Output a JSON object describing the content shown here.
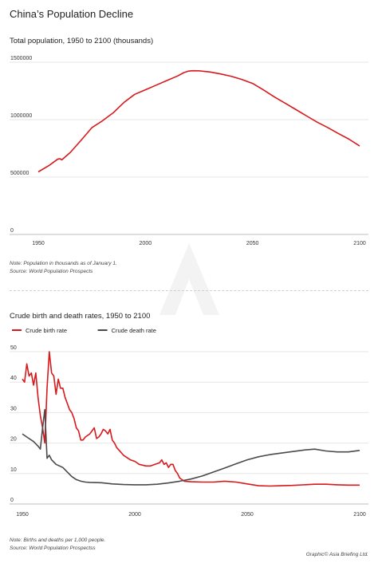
{
  "header": {
    "title": "China’s Population Decline"
  },
  "chart_data": [
    {
      "type": "line",
      "title": "Total population, 1950 to 2100 (thousands)",
      "xlabel": "",
      "ylabel": "",
      "xlim": [
        1950,
        2100
      ],
      "ylim": [
        0,
        1500000
      ],
      "x_ticks": [
        1950,
        2000,
        2050,
        2100
      ],
      "y_ticks": [
        0,
        500000,
        1000000,
        1500000
      ],
      "x_tick_labels": [
        "1950",
        "2000",
        "2050",
        "2100"
      ],
      "y_tick_labels": [
        "0",
        "500000",
        "1000000",
        "1500000"
      ],
      "grid": "horizontal",
      "series": [
        {
          "name": "",
          "color": "#d7191c",
          "x": [
            1950,
            1955,
            1959,
            1960,
            1961,
            1965,
            1970,
            1975,
            1980,
            1985,
            1990,
            1995,
            2000,
            2005,
            2010,
            2015,
            2018,
            2020,
            2022,
            2025,
            2030,
            2035,
            2040,
            2045,
            2050,
            2055,
            2060,
            2065,
            2070,
            2075,
            2080,
            2085,
            2090,
            2095,
            2100
          ],
          "y": [
            545000,
            600000,
            655000,
            660000,
            650000,
            715000,
            820000,
            930000,
            990000,
            1060000,
            1150000,
            1220000,
            1260000,
            1300000,
            1340000,
            1380000,
            1410000,
            1422000,
            1426000,
            1425000,
            1415000,
            1398000,
            1378000,
            1350000,
            1315000,
            1260000,
            1200000,
            1145000,
            1090000,
            1035000,
            980000,
            932000,
            880000,
            830000,
            770000
          ]
        }
      ],
      "note": "Note: Population in thousands as of January 1.",
      "source": "Source: World Population Prospects"
    },
    {
      "type": "line",
      "title": "Crude birth and death rates, 1950 to 2100",
      "xlabel": "",
      "ylabel": "",
      "xlim": [
        1950,
        2100
      ],
      "ylim": [
        0,
        50
      ],
      "x_ticks": [
        1950,
        2000,
        2050,
        2100
      ],
      "y_ticks": [
        0,
        10,
        20,
        30,
        40,
        50
      ],
      "x_tick_labels": [
        "1950",
        "2000",
        "2050",
        "2100"
      ],
      "y_tick_labels": [
        "0",
        "10",
        "20",
        "30",
        "40",
        "50"
      ],
      "grid": "horizontal",
      "legend": "top-left",
      "series": [
        {
          "name": "Crude birth rate",
          "color": "#d7191c",
          "x": [
            1950,
            1951,
            1952,
            1953,
            1954,
            1955,
            1956,
            1957,
            1958,
            1959,
            1960,
            1961,
            1962,
            1963,
            1964,
            1965,
            1966,
            1967,
            1968,
            1969,
            1970,
            1971,
            1972,
            1973,
            1974,
            1975,
            1976,
            1977,
            1978,
            1980,
            1982,
            1983,
            1984,
            1985,
            1986,
            1987,
            1988,
            1989,
            1990,
            1991,
            1992,
            1995,
            1998,
            2000,
            2001,
            2002,
            2005,
            2007,
            2009,
            2011,
            2012,
            2013,
            2014,
            2015,
            2016,
            2017,
            2018,
            2019,
            2020,
            2022,
            2025,
            2030,
            2035,
            2040,
            2045,
            2050,
            2055,
            2060,
            2065,
            2070,
            2080,
            2085,
            2090,
            2095,
            2100
          ],
          "y": [
            41,
            40,
            46,
            42,
            43,
            39,
            43,
            35,
            29,
            25,
            20,
            38,
            50,
            43,
            42,
            36,
            41,
            38,
            38,
            35,
            33,
            31,
            30,
            28,
            25,
            24,
            21,
            21,
            22,
            23,
            25,
            21.5,
            22,
            23,
            24.5,
            24,
            23,
            24.5,
            21,
            20,
            18.5,
            16,
            14.5,
            14,
            13.5,
            13,
            12.5,
            12.5,
            13,
            13.5,
            14.5,
            13,
            13.5,
            12,
            13,
            13,
            11,
            10,
            8.5,
            7.5,
            7.3,
            7.2,
            7.2,
            7.5,
            7.2,
            6.6,
            6,
            5.9,
            6,
            6.1,
            6.5,
            6.5,
            6.3,
            6.2,
            6.2
          ]
        },
        {
          "name": "Crude death rate",
          "color": "#4a4a4a",
          "x": [
            1950,
            1952,
            1955,
            1957,
            1958,
            1959,
            1960,
            1961,
            1962,
            1963,
            1965,
            1968,
            1970,
            1972,
            1974,
            1976,
            1978,
            1980,
            1985,
            1990,
            1995,
            2000,
            2005,
            2010,
            2015,
            2020,
            2025,
            2030,
            2035,
            2040,
            2045,
            2050,
            2055,
            2060,
            2065,
            2070,
            2075,
            2080,
            2085,
            2090,
            2095,
            2100
          ],
          "y": [
            23,
            22,
            20.5,
            19,
            18,
            25,
            31,
            15,
            16,
            14.5,
            13,
            12,
            10.5,
            9,
            8,
            7.5,
            7.2,
            7.1,
            7,
            6.6,
            6.4,
            6.3,
            6.3,
            6.5,
            6.9,
            7.5,
            8.2,
            9.2,
            10.5,
            11.8,
            13.2,
            14.5,
            15.5,
            16.2,
            16.7,
            17.2,
            17.7,
            18,
            17.4,
            17.1,
            17.1,
            17.6
          ]
        }
      ],
      "note": "Note: Births and deaths per 1,000 people.",
      "source": "Source: World Population Prospectss"
    }
  ],
  "credit": "Graphic© Asia Briefing Ltd."
}
